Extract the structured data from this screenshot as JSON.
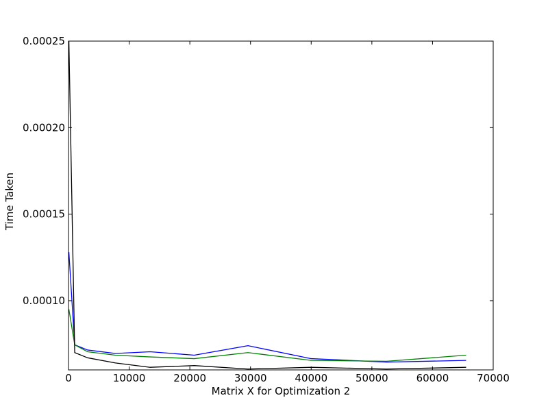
{
  "chart_data": {
    "type": "line",
    "title": "",
    "xlabel": "Matrix X for Optimization 2",
    "ylabel": "Time Taken",
    "xlim": [
      0,
      70000
    ],
    "ylim": [
      6e-05,
      0.00025
    ],
    "grid": false,
    "x_ticks": [
      0,
      10000,
      20000,
      30000,
      40000,
      50000,
      60000,
      70000
    ],
    "x_tick_labels": [
      "0",
      "10000",
      "20000",
      "30000",
      "40000",
      "50000",
      "60000",
      "70000"
    ],
    "y_ticks": [
      0.0001,
      0.00015,
      0.0002,
      0.00025
    ],
    "y_tick_labels": [
      "0.00010",
      "0.00015",
      "0.00020",
      "0.00025"
    ],
    "series": [
      {
        "color": "#0000ff",
        "points": [
          [
            64,
            0.000128
          ],
          [
            1024,
            7.45e-05
          ],
          [
            3136,
            7.15e-05
          ],
          [
            7744,
            6.95e-05
          ],
          [
            13456,
            7.05e-05
          ],
          [
            20736,
            6.85e-05
          ],
          [
            29584,
            7.4e-05
          ],
          [
            40000,
            6.65e-05
          ],
          [
            52441,
            6.45e-05
          ],
          [
            65536,
            6.55e-05
          ]
        ]
      },
      {
        "color": "#008000",
        "points": [
          [
            64,
            9.5e-05
          ],
          [
            1024,
            7.45e-05
          ],
          [
            3136,
            7.05e-05
          ],
          [
            7744,
            6.85e-05
          ],
          [
            13456,
            6.75e-05
          ],
          [
            20736,
            6.65e-05
          ],
          [
            29584,
            7e-05
          ],
          [
            40000,
            6.55e-05
          ],
          [
            52441,
            6.5e-05
          ],
          [
            65536,
            6.85e-05
          ]
        ]
      },
      {
        "color": "#000000",
        "points": [
          [
            64,
            0.00025
          ],
          [
            1024,
            7e-05
          ],
          [
            3136,
            6.7e-05
          ],
          [
            7744,
            6.4e-05
          ],
          [
            13456,
            6.15e-05
          ],
          [
            20736,
            6.25e-05
          ],
          [
            29584,
            6.05e-05
          ],
          [
            40000,
            6.15e-05
          ],
          [
            52441,
            6.05e-05
          ],
          [
            65536,
            6.15e-05
          ]
        ]
      }
    ]
  }
}
